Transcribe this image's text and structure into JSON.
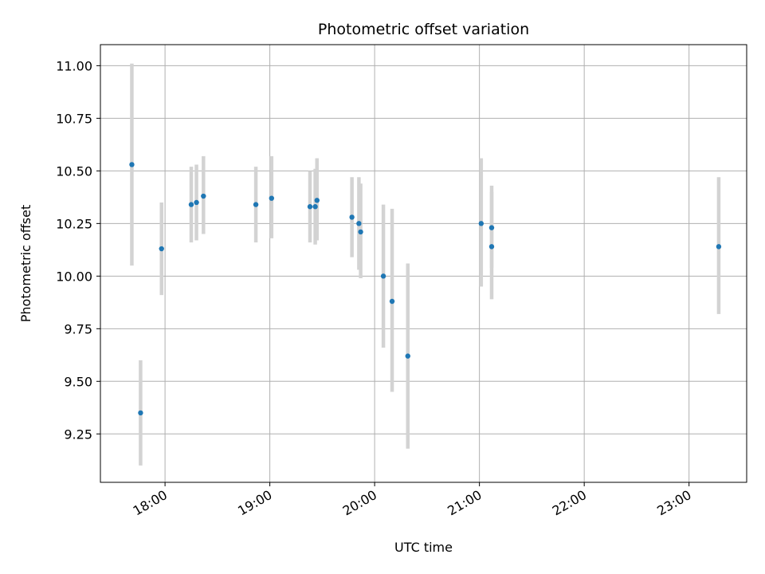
{
  "chart_data": {
    "type": "scatter",
    "title": "Photometric offset variation",
    "xlabel": "UTC time",
    "ylabel": "Photometric offset",
    "x_ticks": [
      "18:00",
      "19:00",
      "20:00",
      "21:00",
      "22:00",
      "23:00"
    ],
    "y_ticks": [
      "9.25",
      "9.50",
      "9.75",
      "10.00",
      "10.25",
      "10.50",
      "10.75",
      "11.00"
    ],
    "xlim": [
      "17:23",
      "23:33"
    ],
    "ylim": [
      9.02,
      11.1
    ],
    "grid": true,
    "legend": "none",
    "colors": {
      "point": "#1f77b4",
      "error_bar": "#d3d3d3"
    },
    "points": [
      {
        "x": "17:41",
        "y": 10.53,
        "ylo": 10.05,
        "yhi": 11.01
      },
      {
        "x": "17:46",
        "y": 9.35,
        "ylo": 9.1,
        "yhi": 9.6
      },
      {
        "x": "17:58",
        "y": 10.13,
        "ylo": 9.91,
        "yhi": 10.35
      },
      {
        "x": "18:15",
        "y": 10.34,
        "ylo": 10.16,
        "yhi": 10.52
      },
      {
        "x": "18:18",
        "y": 10.35,
        "ylo": 10.17,
        "yhi": 10.53
      },
      {
        "x": "18:22",
        "y": 10.38,
        "ylo": 10.2,
        "yhi": 10.57
      },
      {
        "x": "18:52",
        "y": 10.34,
        "ylo": 10.16,
        "yhi": 10.52
      },
      {
        "x": "19:01",
        "y": 10.37,
        "ylo": 10.18,
        "yhi": 10.57
      },
      {
        "x": "19:23",
        "y": 10.33,
        "ylo": 10.16,
        "yhi": 10.5
      },
      {
        "x": "19:26",
        "y": 10.33,
        "ylo": 10.15,
        "yhi": 10.51
      },
      {
        "x": "19:27",
        "y": 10.36,
        "ylo": 10.17,
        "yhi": 10.56
      },
      {
        "x": "19:47",
        "y": 10.28,
        "ylo": 10.09,
        "yhi": 10.47
      },
      {
        "x": "19:51",
        "y": 10.25,
        "ylo": 10.03,
        "yhi": 10.47
      },
      {
        "x": "19:52",
        "y": 10.21,
        "ylo": 9.99,
        "yhi": 10.44
      },
      {
        "x": "20:05",
        "y": 10.0,
        "ylo": 9.66,
        "yhi": 10.34
      },
      {
        "x": "20:10",
        "y": 9.88,
        "ylo": 9.45,
        "yhi": 10.32
      },
      {
        "x": "20:19",
        "y": 9.62,
        "ylo": 9.18,
        "yhi": 10.06
      },
      {
        "x": "21:01",
        "y": 10.25,
        "ylo": 9.95,
        "yhi": 10.56
      },
      {
        "x": "21:07",
        "y": 10.23,
        "ylo": 10.04,
        "yhi": 10.43
      },
      {
        "x": "21:07",
        "y": 10.14,
        "ylo": 9.89,
        "yhi": 10.4
      },
      {
        "x": "23:17",
        "y": 10.14,
        "ylo": 9.82,
        "yhi": 10.47
      }
    ]
  }
}
